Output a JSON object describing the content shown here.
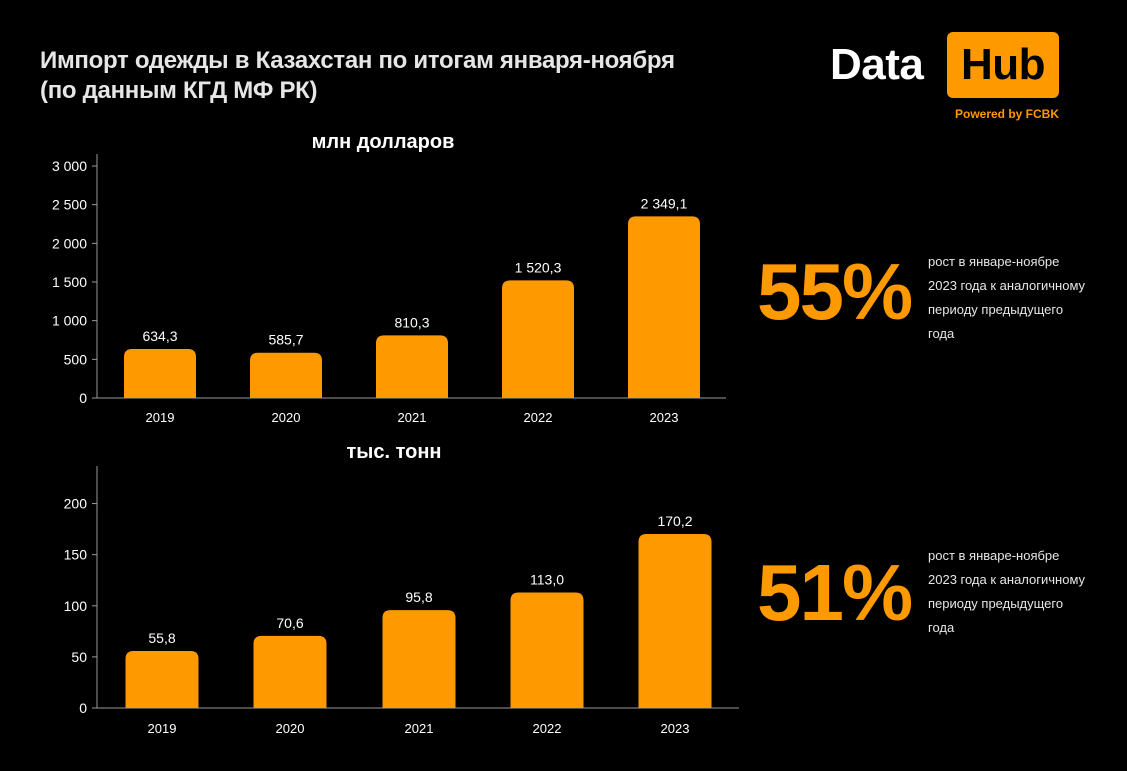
{
  "header": {
    "title_line1": "Импорт одежды в Казахстан по итогам января-ноября",
    "title_line2": "(по данным КГД МФ РК)"
  },
  "logo": {
    "word1": "Data",
    "word2": "Hub",
    "tagline": "Powered by FCBK"
  },
  "colors": {
    "accent": "#ff9900",
    "background": "#000000"
  },
  "chart_data": [
    {
      "type": "bar",
      "title": "млн долларов",
      "categories": [
        "2019",
        "2020",
        "2021",
        "2022",
        "2023"
      ],
      "values": [
        634.3,
        585.7,
        810.3,
        1520.3,
        2349.1
      ],
      "value_labels": [
        "634,3",
        "585,7",
        "810,3",
        "1 520,3",
        "2 349,1"
      ],
      "ylim": [
        0,
        3000
      ],
      "yticks": [
        0,
        500,
        1000,
        1500,
        2000,
        2500,
        3000
      ],
      "ytick_labels": [
        "0",
        "500",
        "1 000",
        "1 500",
        "2 000",
        "2 500",
        "3 000"
      ],
      "grid": false
    },
    {
      "type": "bar",
      "title": "тыс. тонн",
      "categories": [
        "2019",
        "2020",
        "2021",
        "2022",
        "2023"
      ],
      "values": [
        55.8,
        70.6,
        95.8,
        113.0,
        170.2
      ],
      "value_labels": [
        "55,8",
        "70,6",
        "95,8",
        "113,0",
        "170,2"
      ],
      "ylim": [
        0,
        225
      ],
      "yticks": [
        0,
        50,
        100,
        150,
        200
      ],
      "ytick_labels": [
        "0",
        "50",
        "100",
        "150",
        "200"
      ],
      "grid": false
    }
  ],
  "stats": [
    {
      "value": "55%",
      "description": "рост в январе-ноябре 2023 года к аналогичному периоду предыдущего года"
    },
    {
      "value": "51%",
      "description": "рост в январе-ноябре 2023 года к аналогичному периоду предыдущего года"
    }
  ]
}
